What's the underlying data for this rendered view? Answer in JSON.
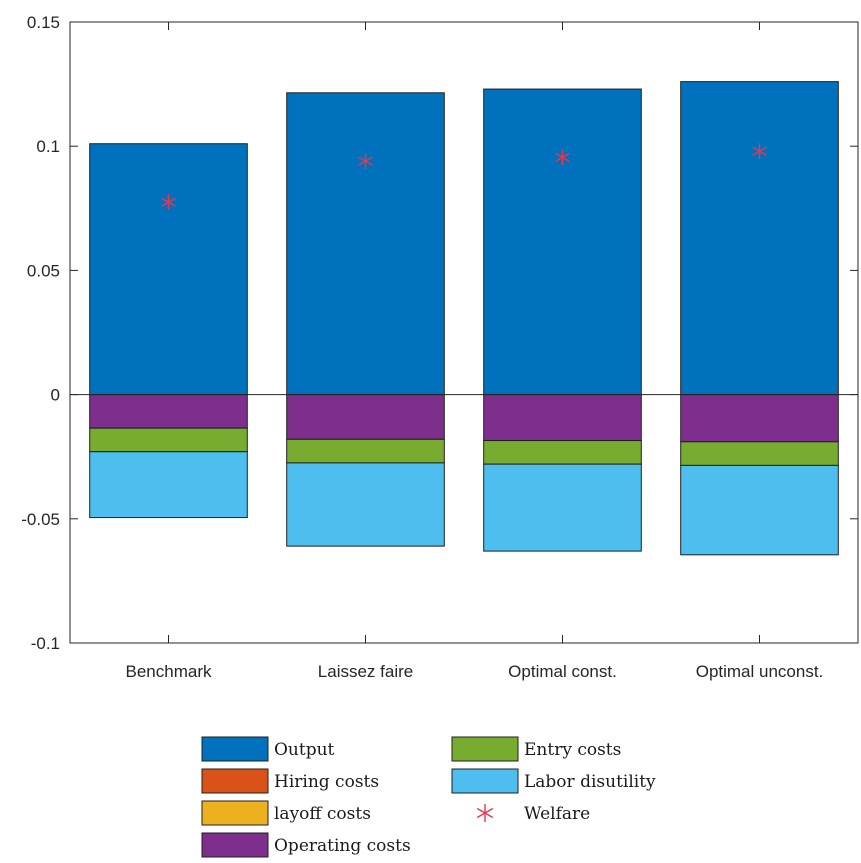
{
  "chart_data": {
    "type": "bar",
    "stacked": true,
    "categories": [
      "Benchmark",
      "Laissez faire",
      "Optimal const.",
      "Optimal unconst."
    ],
    "ylim": [
      -0.1,
      0.15
    ],
    "yticks": [
      -0.1,
      -0.05,
      0,
      0.05,
      0.1,
      0.15
    ],
    "ytick_labels": [
      "-0.1",
      "-0.05",
      "0",
      "0.05",
      "0.1",
      "0.15"
    ],
    "grid": false,
    "legend_position": "bottom",
    "series": [
      {
        "name": "Output",
        "color": "#0072BD",
        "values": [
          0.101,
          0.1215,
          0.123,
          0.126
        ]
      },
      {
        "name": "Hiring costs",
        "color": "#D95319",
        "values": [
          0,
          0,
          0,
          0
        ]
      },
      {
        "name": "layoff costs",
        "color": "#EDB120",
        "values": [
          0,
          0,
          0,
          0
        ]
      },
      {
        "name": "Operating costs",
        "color": "#7E2F8E",
        "values": [
          -0.0135,
          -0.018,
          -0.0185,
          -0.019
        ]
      },
      {
        "name": "Entry costs",
        "color": "#77AC30",
        "values": [
          -0.0095,
          -0.0095,
          -0.0095,
          -0.0095
        ]
      },
      {
        "name": "Labor disutility",
        "color": "#4DBEEE",
        "values": [
          -0.0265,
          -0.0335,
          -0.035,
          -0.036
        ]
      }
    ],
    "welfare": {
      "name": "Welfare",
      "color": "#E8364F",
      "values": [
        0.0775,
        0.094,
        0.0955,
        0.098
      ]
    }
  }
}
